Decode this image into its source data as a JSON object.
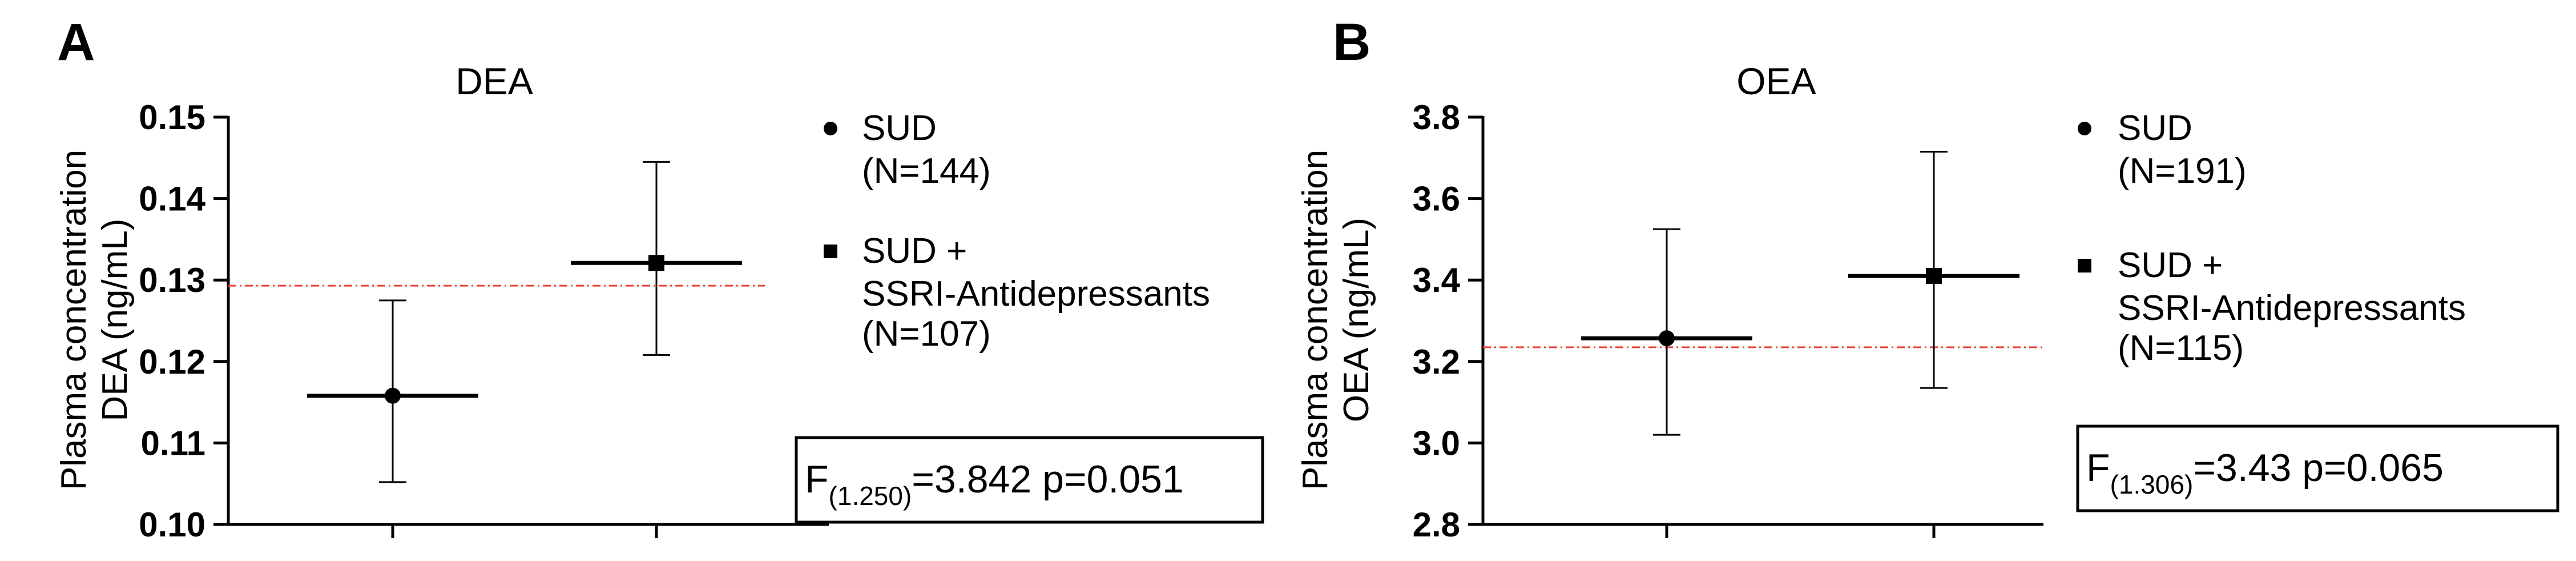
{
  "chart_data": [
    {
      "type": "scatter",
      "panel_label": "A",
      "title": "DEA",
      "ylabel_lines": [
        "Plasma concentration",
        "DEA (ng/mL)"
      ],
      "ylim": [
        0.1,
        0.15
      ],
      "yticks": [
        0.1,
        0.11,
        0.12,
        0.13,
        0.14,
        0.15
      ],
      "ytick_labels": [
        "0.10",
        "0.11",
        "0.12",
        "0.13",
        "0.14",
        "0.15"
      ],
      "reference_line": 0.1293,
      "series": [
        {
          "name": "SUD",
          "n_label": "(N=144)",
          "marker": "circle",
          "mean": 0.1158,
          "lower": 0.1052,
          "upper": 0.1275
        },
        {
          "name": "SUD + SSRI-Antidepressants",
          "name_lines": [
            "SUD +",
            "SSRI-Antidepressants"
          ],
          "n_label": "(N=107)",
          "marker": "square",
          "mean": 0.1321,
          "lower": 0.1208,
          "upper": 0.1445
        }
      ],
      "stat": {
        "prefix": "F",
        "sub": "(1.250)",
        "rest": "=3.842 p=0.051"
      }
    },
    {
      "type": "scatter",
      "panel_label": "B",
      "title": "OEA",
      "ylabel_lines": [
        "Plasma concentration",
        "OEA (ng/mL)"
      ],
      "ylim": [
        2.8,
        3.8
      ],
      "yticks": [
        2.8,
        3.0,
        3.2,
        3.4,
        3.6,
        3.8
      ],
      "ytick_labels": [
        "2.8",
        "3.0",
        "3.2",
        "3.4",
        "3.6",
        "3.8"
      ],
      "reference_line": 3.235,
      "series": [
        {
          "name": "SUD",
          "n_label": "(N=191)",
          "marker": "circle",
          "mean": 3.257,
          "lower": 3.02,
          "upper": 3.525
        },
        {
          "name": "SUD + SSRI-Antidepressants",
          "name_lines": [
            "SUD +",
            "SSRI-Antidepressants"
          ],
          "n_label": "(N=115)",
          "marker": "square",
          "mean": 3.41,
          "lower": 3.135,
          "upper": 3.715
        }
      ],
      "stat": {
        "prefix": "F",
        "sub": "(1.306)",
        "rest": "=3.43 p=0.065"
      }
    }
  ],
  "colors": {
    "reference_line": "#e8453c",
    "ink": "#000000"
  }
}
